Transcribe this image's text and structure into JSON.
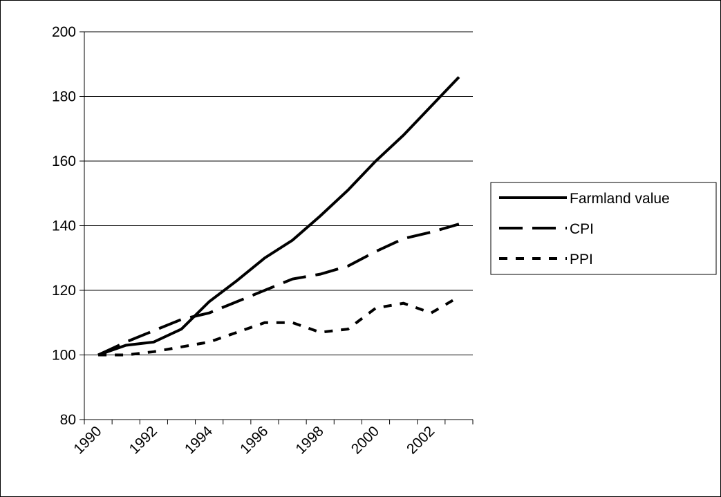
{
  "chart_data": {
    "type": "line",
    "categories": [
      "1990",
      null,
      "1992",
      null,
      "1994",
      null,
      "1996",
      null,
      "1998",
      null,
      "2000",
      null,
      "2002",
      null
    ],
    "series": [
      {
        "name": "Farmland value",
        "color": "#000000",
        "style": "solid",
        "values": [
          100,
          103,
          104,
          108,
          116.5,
          123,
          130,
          135.5,
          143,
          151,
          160,
          168,
          177,
          186
        ]
      },
      {
        "name": "CPI",
        "color": "#000000",
        "style": "long-dash",
        "values": [
          100,
          104,
          107.5,
          111,
          113,
          116.5,
          120,
          123.5,
          125,
          127.5,
          132,
          136,
          138,
          140.5
        ]
      },
      {
        "name": "PPI",
        "color": "#000000",
        "style": "short-dash",
        "values": [
          100,
          100,
          101,
          102.5,
          104,
          107,
          110,
          110,
          107,
          108,
          114.5,
          116,
          113,
          118
        ]
      }
    ],
    "ylim": [
      80,
      200
    ],
    "yticks": [
      80,
      100,
      120,
      140,
      160,
      180,
      200
    ],
    "grid": true,
    "legend": "right"
  }
}
